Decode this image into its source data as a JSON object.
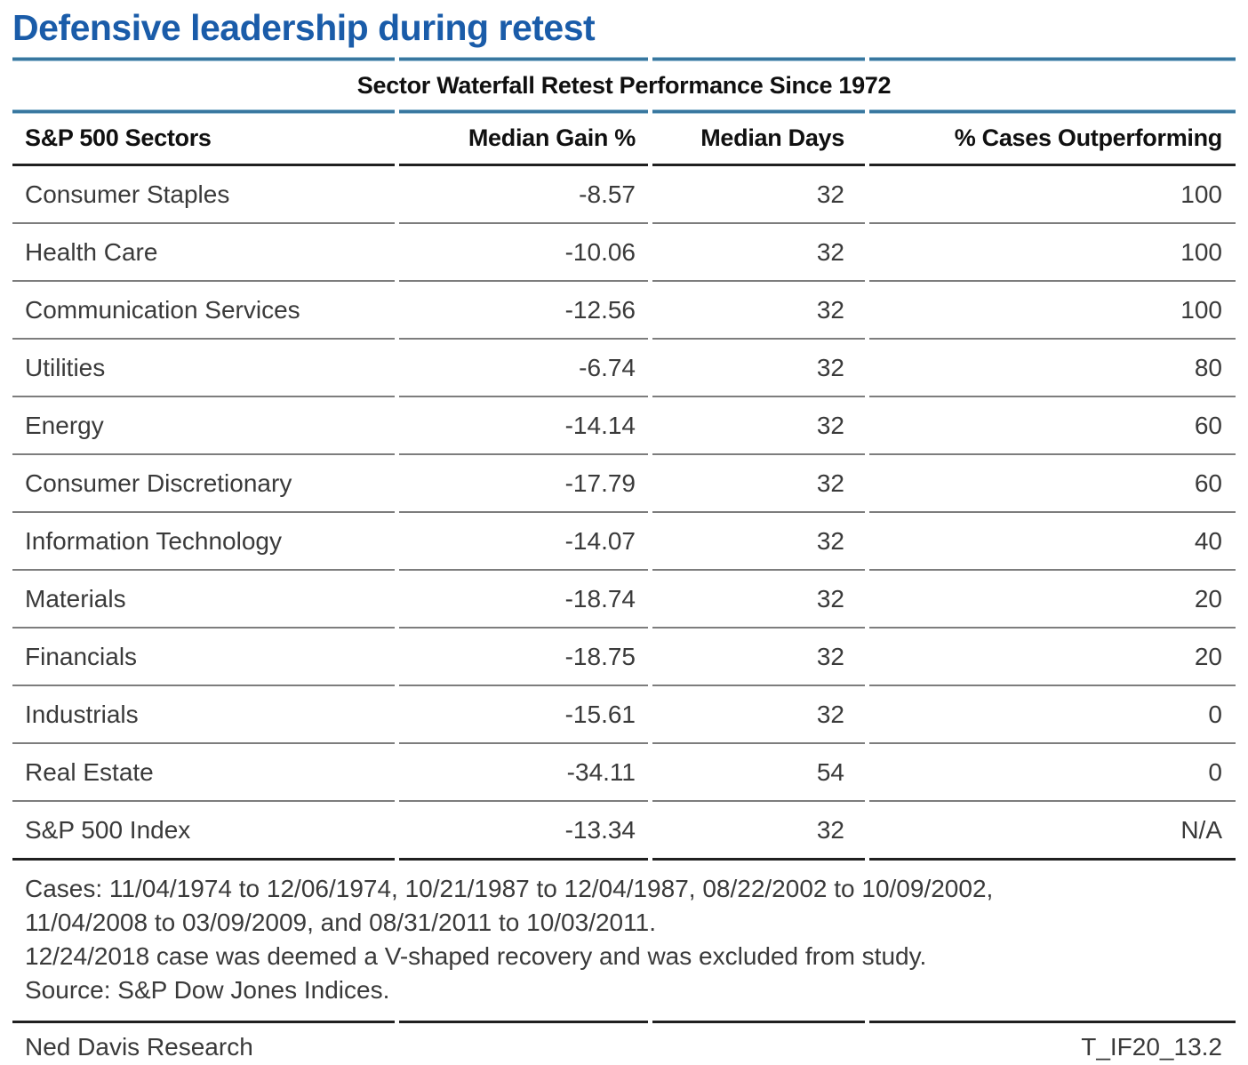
{
  "page": {
    "title": "Defensive leadership during retest",
    "footer_left": "Ned Davis Research",
    "footer_right": "T_IF20_13.2"
  },
  "table": {
    "title": "Sector Waterfall Retest Performance Since 1972",
    "columns": [
      "S&P 500 Sectors",
      "Median Gain %",
      "Median Days",
      "% Cases Outperforming"
    ],
    "rows": [
      {
        "sector": "Consumer Staples",
        "median_gain": "-8.57",
        "median_days": "32",
        "pct_outperforming": "100"
      },
      {
        "sector": "Health Care",
        "median_gain": "-10.06",
        "median_days": "32",
        "pct_outperforming": "100"
      },
      {
        "sector": "Communication Services",
        "median_gain": "-12.56",
        "median_days": "32",
        "pct_outperforming": "100"
      },
      {
        "sector": "Utilities",
        "median_gain": "-6.74",
        "median_days": "32",
        "pct_outperforming": "80"
      },
      {
        "sector": "Energy",
        "median_gain": "-14.14",
        "median_days": "32",
        "pct_outperforming": "60"
      },
      {
        "sector": "Consumer Discretionary",
        "median_gain": "-17.79",
        "median_days": "32",
        "pct_outperforming": "60"
      },
      {
        "sector": "Information Technology",
        "median_gain": "-14.07",
        "median_days": "32",
        "pct_outperforming": "40"
      },
      {
        "sector": "Materials",
        "median_gain": "-18.74",
        "median_days": "32",
        "pct_outperforming": "20"
      },
      {
        "sector": "Financials",
        "median_gain": "-18.75",
        "median_days": "32",
        "pct_outperforming": "20"
      },
      {
        "sector": "Industrials",
        "median_gain": "-15.61",
        "median_days": "32",
        "pct_outperforming": "0"
      },
      {
        "sector": "Real Estate",
        "median_gain": "-34.11",
        "median_days": "54",
        "pct_outperforming": "0"
      },
      {
        "sector": "S&P 500 Index",
        "median_gain": "-13.34",
        "median_days": "32",
        "pct_outperforming": "N/A"
      }
    ]
  },
  "notes": [
    "Cases: 11/04/1974 to 12/06/1974, 10/21/1987 to 12/04/1987, 08/22/2002 to 10/09/2002,",
    "11/04/2008 to 03/09/2009, and 08/31/2011 to 10/03/2011.",
    "12/24/2018 case was deemed a V-shaped recovery and was excluded from study.",
    "Source: S&P Dow Jones Indices."
  ],
  "colors": {
    "title_blue": "#1a5ca9",
    "rule_blue": "#38779f",
    "rule_dark": "#202020",
    "rule_gray": "#7d7d7d",
    "text": "#3a3a3a",
    "heading_text": "#101010"
  },
  "chart_data": {
    "type": "table",
    "title": "Sector Waterfall Retest Performance Since 1972",
    "columns": [
      "S&P 500 Sectors",
      "Median Gain %",
      "Median Days",
      "% Cases Outperforming"
    ],
    "rows": [
      [
        "Consumer Staples",
        -8.57,
        32,
        100
      ],
      [
        "Health Care",
        -10.06,
        32,
        100
      ],
      [
        "Communication Services",
        -12.56,
        32,
        100
      ],
      [
        "Utilities",
        -6.74,
        32,
        80
      ],
      [
        "Energy",
        -14.14,
        32,
        60
      ],
      [
        "Consumer Discretionary",
        -17.79,
        32,
        60
      ],
      [
        "Information Technology",
        -14.07,
        32,
        40
      ],
      [
        "Materials",
        -18.74,
        32,
        20
      ],
      [
        "Financials",
        -18.75,
        32,
        20
      ],
      [
        "Industrials",
        -15.61,
        32,
        0
      ],
      [
        "Real Estate",
        -34.11,
        54,
        0
      ],
      [
        "S&P 500 Index",
        -13.34,
        32,
        "N/A"
      ]
    ]
  }
}
